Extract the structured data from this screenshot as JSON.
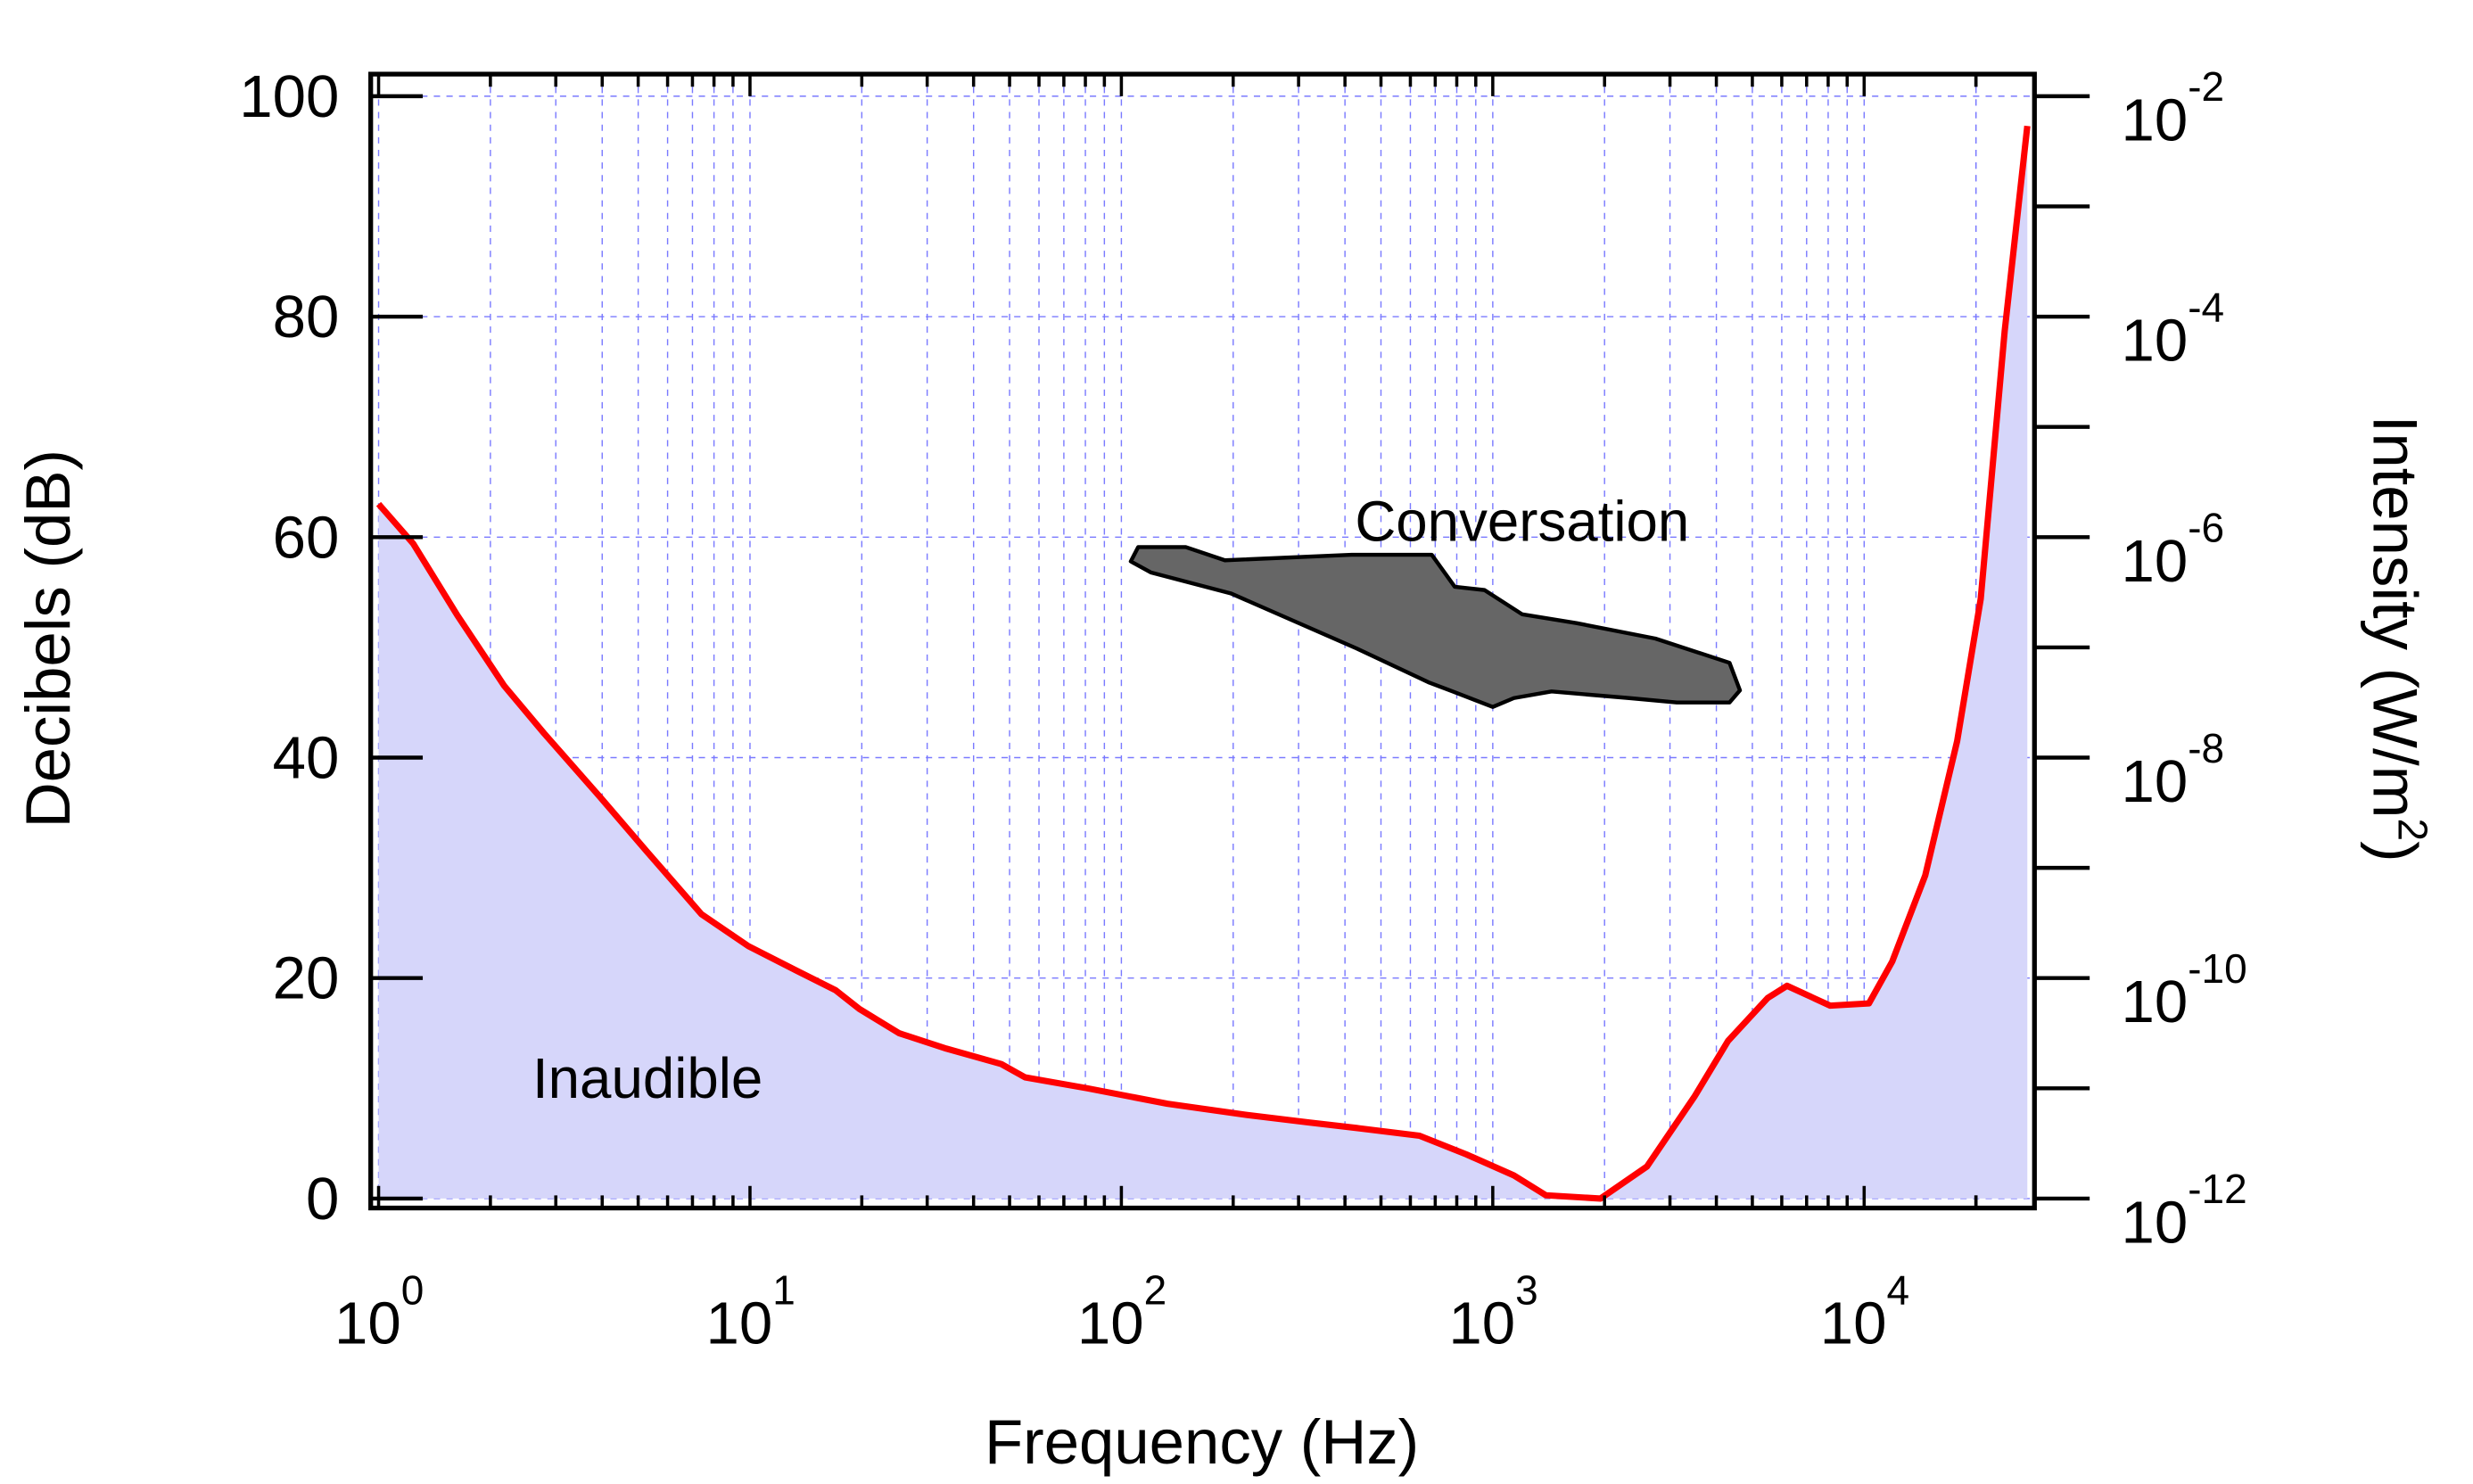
{
  "chart_data": {
    "type": "area",
    "title": "",
    "xlabel": "Frequency (Hz)",
    "ylabel": "Decibels (dB)",
    "ylabel_right": {
      "text": "Intensity (W/m",
      "sup": "2",
      "close": ")"
    },
    "x_scale": "log",
    "xlim": [
      0.95,
      30000
    ],
    "ylim": [
      -1,
      102
    ],
    "grid": true,
    "x_ticks": [
      {
        "value": 1,
        "base": "10",
        "exp": "0"
      },
      {
        "value": 10,
        "base": "10",
        "exp": "1"
      },
      {
        "value": 100,
        "base": "10",
        "exp": "2"
      },
      {
        "value": 1000,
        "base": "10",
        "exp": "3"
      },
      {
        "value": 10000,
        "base": "10",
        "exp": "4"
      }
    ],
    "y_ticks": [
      {
        "value": 0,
        "label": "0"
      },
      {
        "value": 20,
        "label": "20"
      },
      {
        "value": 40,
        "label": "40"
      },
      {
        "value": 60,
        "label": "60"
      },
      {
        "value": 80,
        "label": "80"
      },
      {
        "value": 100,
        "label": "100"
      }
    ],
    "y_right_ticks": [
      {
        "value": 0,
        "base": "10",
        "exp": "-12"
      },
      {
        "value": 20,
        "base": "10",
        "exp": "-10"
      },
      {
        "value": 40,
        "base": "10",
        "exp": "-8"
      },
      {
        "value": 60,
        "base": "10",
        "exp": "-6"
      },
      {
        "value": 80,
        "base": "10",
        "exp": "-4"
      },
      {
        "value": 100,
        "base": "10",
        "exp": "-2"
      }
    ],
    "series": [
      {
        "kind": "threshold-of-hearing",
        "color": "#ff0000",
        "fill": "#d6d6fa",
        "x": [
          1,
          1.24,
          1.63,
          2.18,
          2.79,
          3.93,
          5.27,
          7.4,
          9.9,
          13.3,
          17,
          19.7,
          25.2,
          33.8,
          47.5,
          55,
          81,
          133,
          216,
          320,
          430,
          635,
          850,
          1140,
          1390,
          1950,
          2600,
          3500,
          4300,
          5500,
          6200,
          8100,
          10300,
          11900,
          14600,
          17800,
          20600,
          23900,
          27500
        ],
        "y": [
          63,
          59.4,
          52.9,
          46.5,
          42.2,
          36.5,
          31.5,
          25.8,
          22.9,
          20.7,
          18.9,
          17.2,
          15,
          13.6,
          12.2,
          11,
          10,
          8.6,
          7.6,
          6.9,
          6.4,
          5.7,
          4,
          2.1,
          0.3,
          0,
          2.9,
          9.3,
          14.3,
          18.2,
          19.3,
          17.5,
          17.7,
          21.5,
          29.3,
          41.5,
          54.4,
          78.7,
          97.3
        ]
      }
    ],
    "regions": [
      {
        "kind": "conversation",
        "color": "#666666",
        "x": [
          106,
          111,
          149,
          190,
          417,
          685,
          790,
          950,
          1200,
          1680,
          2740,
          4340,
          4630,
          4340,
          3130,
          2330,
          1440,
          1140,
          1000,
          780,
          675,
          430,
          197,
          133,
          120
        ],
        "y": [
          57.8,
          59.1,
          59.1,
          57.9,
          58.4,
          58.4,
          55.5,
          55.2,
          53,
          52.2,
          50.8,
          48.6,
          46.1,
          45,
          45,
          45.4,
          46,
          45.4,
          44.6,
          46,
          46.8,
          49.9,
          54.9,
          56.4,
          56.8
        ]
      }
    ],
    "annotations": [
      {
        "text": "Conversation",
        "x": 1200,
        "y": 61.5
      },
      {
        "text": "Inaudible",
        "x": 5.3,
        "y": 11
      }
    ]
  }
}
